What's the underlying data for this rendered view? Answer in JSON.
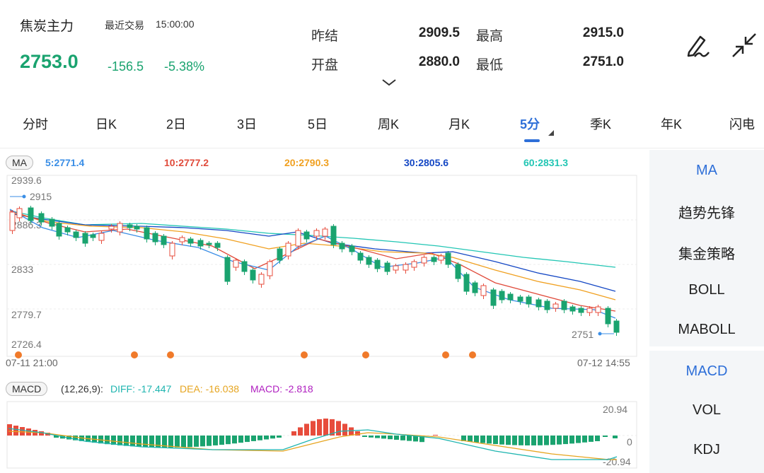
{
  "header": {
    "title": "焦炭主力",
    "time_label": "最近交易",
    "time": "15:00:00",
    "price": "2753.0",
    "change": "-156.5",
    "change_pct": "-5.38%",
    "prev_settle_label": "昨结",
    "prev_settle": "2909.5",
    "high_label": "最高",
    "high": "2915.0",
    "open_label": "开盘",
    "open": "2880.0",
    "low_label": "最低",
    "low": "2751.0"
  },
  "tabs": [
    "分时",
    "日K",
    "2日",
    "3日",
    "5日",
    "周K",
    "月K",
    "5分",
    "季K",
    "年K",
    "闪电"
  ],
  "active_tab": "5分",
  "ma_legend": {
    "label": "MA",
    "ma5": "5:2771.4",
    "ma10": "10:2777.2",
    "ma20": "20:2790.3",
    "ma30": "30:2805.6",
    "ma60": "60:2831.3"
  },
  "price_axis": [
    "2939.6",
    "2886.3",
    "2833",
    "2779.7",
    "2726.4"
  ],
  "max_marker": "2915",
  "min_marker": "2751",
  "time_start": "07-11 21:00",
  "time_end": "07-12 14:55",
  "macd_legend": {
    "label": "MACD",
    "params": "(12,26,9):",
    "diff": "DIFF: -17.447",
    "dea": "DEA: -16.038",
    "macd": "MACD: -2.818"
  },
  "macd_axis": [
    "20.94",
    "0",
    "-20.94"
  ],
  "side_main": [
    "MA",
    "趋势先锋",
    "集金策略",
    "BOLL",
    "MABOLL"
  ],
  "side_sub": [
    "MACD",
    "VOL",
    "KDJ"
  ],
  "colors": {
    "up": "#e74c3c",
    "down": "#1aa36f",
    "accent": "#2e6fd8",
    "ma5": "#3a8ee6",
    "ma10": "#e04a3a",
    "ma20": "#f0a020",
    "ma30": "#1447c4",
    "ma60": "#22c6b4"
  },
  "icons": [
    "edit-pen-icon",
    "collapse-arrows-icon",
    "chevron-down-icon"
  ]
}
